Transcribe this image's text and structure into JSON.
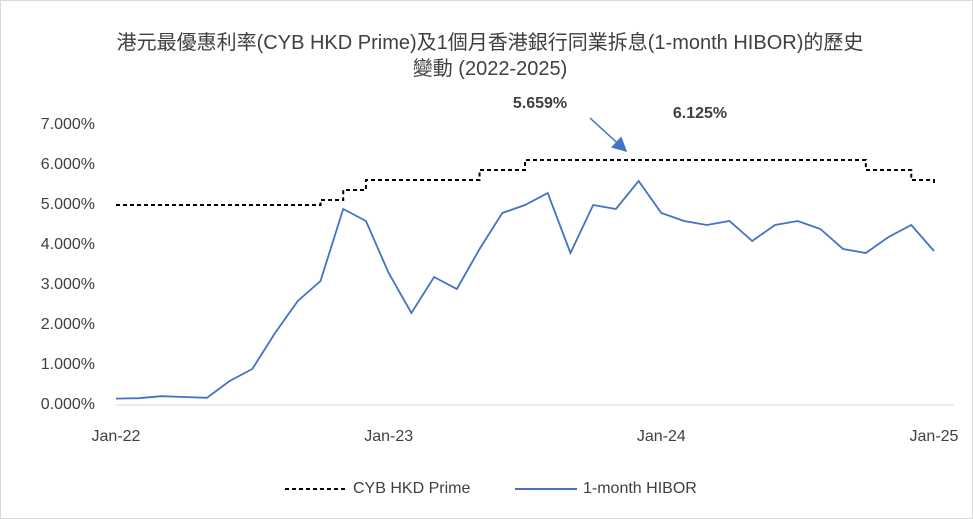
{
  "chart_data": {
    "type": "line",
    "title": "港元最優惠利率(CYB HKD Prime)及1個月香港銀行同業拆息(1-month HIBOR)的歷史變動 (2022-2025)",
    "x": [
      "Jan-22",
      "Feb-22",
      "Mar-22",
      "Apr-22",
      "May-22",
      "Jun-22",
      "Jul-22",
      "Aug-22",
      "Sep-22",
      "Oct-22",
      "Nov-22",
      "Dec-22",
      "Jan-23",
      "Feb-23",
      "Mar-23",
      "Apr-23",
      "May-23",
      "Jun-23",
      "Jul-23",
      "Aug-23",
      "Sep-23",
      "Oct-23",
      "Nov-23",
      "Dec-23",
      "Jan-24",
      "Feb-24",
      "Mar-24",
      "Apr-24",
      "May-24",
      "Jun-24",
      "Jul-24",
      "Aug-24",
      "Sep-24",
      "Oct-24",
      "Nov-24",
      "Dec-24",
      "Jan-25"
    ],
    "xticks": [
      "Jan-22",
      "Jan-23",
      "Jan-24",
      "Jan-25"
    ],
    "series": [
      {
        "name": "CYB HKD Prime",
        "color": "#000000",
        "dashed": true,
        "step": true,
        "values": [
          5.0,
          5.0,
          5.0,
          5.0,
          5.0,
          5.0,
          5.0,
          5.0,
          5.0,
          5.125,
          5.375,
          5.625,
          5.625,
          5.625,
          5.625,
          5.625,
          5.875,
          5.875,
          6.125,
          6.125,
          6.125,
          6.125,
          6.125,
          6.125,
          6.125,
          6.125,
          6.125,
          6.125,
          6.125,
          6.125,
          6.125,
          6.125,
          6.125,
          5.875,
          5.875,
          5.625,
          5.5
        ]
      },
      {
        "name": "1-month HIBOR",
        "color": "#4472c4",
        "dashed": false,
        "step": false,
        "values": [
          0.16,
          0.17,
          0.22,
          0.2,
          0.18,
          0.6,
          0.9,
          1.8,
          2.6,
          3.1,
          4.9,
          4.6,
          3.3,
          2.3,
          3.2,
          2.9,
          3.9,
          4.8,
          5.0,
          5.3,
          3.8,
          5.0,
          4.9,
          5.6,
          4.8,
          4.6,
          4.5,
          4.6,
          4.1,
          4.5,
          4.6,
          4.4,
          3.9,
          3.8,
          4.2,
          4.5,
          3.85
        ]
      }
    ],
    "ylim": [
      0,
      7
    ],
    "yticks": [
      {
        "value": 0,
        "label": "0.000%"
      },
      {
        "value": 1,
        "label": "1.000%"
      },
      {
        "value": 2,
        "label": "2.000%"
      },
      {
        "value": 3,
        "label": "3.000%"
      },
      {
        "value": 4,
        "label": "4.000%"
      },
      {
        "value": 5,
        "label": "5.000%"
      },
      {
        "value": 6,
        "label": "6.000%"
      },
      {
        "value": 7,
        "label": "7.000%"
      }
    ],
    "annotations": [
      "5.659%",
      "6.125%"
    ],
    "legend": "bottom"
  }
}
